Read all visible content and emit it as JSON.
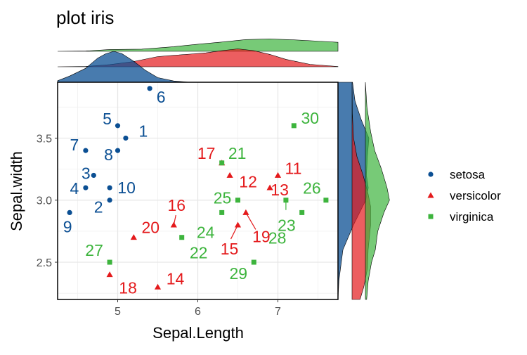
{
  "chart_data": {
    "type": "scatter",
    "title": "plot iris",
    "xlabel": "Sepal.Length",
    "ylabel": "Sepal.width",
    "xlim": [
      4.25,
      7.75
    ],
    "ylim": [
      2.2,
      3.95
    ],
    "x_ticks": [
      "5",
      "6",
      "7"
    ],
    "y_ticks": [
      "2.5",
      "3.0",
      "3.5"
    ],
    "grid": true,
    "legend_position": "right",
    "colors": {
      "setosa": "#0b4f93",
      "versicolor": "#e41a1c",
      "virginica": "#3db43d"
    },
    "series": [
      {
        "name": "setosa",
        "shape": "circle",
        "points": [
          {
            "x": 5.1,
            "y": 3.5,
            "label": "1"
          },
          {
            "x": 4.9,
            "y": 3.0,
            "label": "2"
          },
          {
            "x": 4.7,
            "y": 3.2,
            "label": "3"
          },
          {
            "x": 4.6,
            "y": 3.1,
            "label": "4"
          },
          {
            "x": 5.0,
            "y": 3.6,
            "label": "5"
          },
          {
            "x": 5.4,
            "y": 3.9,
            "label": "6"
          },
          {
            "x": 4.6,
            "y": 3.4,
            "label": "7"
          },
          {
            "x": 5.0,
            "y": 3.4,
            "label": "8"
          },
          {
            "x": 4.4,
            "y": 2.9,
            "label": "9"
          },
          {
            "x": 4.9,
            "y": 3.1,
            "label": "10"
          }
        ]
      },
      {
        "name": "versicolor",
        "shape": "triangle",
        "points": [
          {
            "x": 7.0,
            "y": 3.2,
            "label": "11"
          },
          {
            "x": 6.4,
            "y": 3.2,
            "label": "12"
          },
          {
            "x": 6.9,
            "y": 3.1,
            "label": "13"
          },
          {
            "x": 5.5,
            "y": 2.3,
            "label": "14"
          },
          {
            "x": 6.5,
            "y": 2.8,
            "label": "15"
          },
          {
            "x": 5.7,
            "y": 2.8,
            "label": "16"
          },
          {
            "x": 6.3,
            "y": 3.3,
            "label": "17"
          },
          {
            "x": 4.9,
            "y": 2.4,
            "label": "18"
          },
          {
            "x": 6.6,
            "y": 2.9,
            "label": "19"
          },
          {
            "x": 5.2,
            "y": 2.7,
            "label": "20"
          }
        ]
      },
      {
        "name": "virginica",
        "shape": "square",
        "points": [
          {
            "x": 6.3,
            "y": 3.3,
            "label": "21"
          },
          {
            "x": 5.8,
            "y": 2.7,
            "label": "22"
          },
          {
            "x": 7.1,
            "y": 3.0,
            "label": "23"
          },
          {
            "x": 6.3,
            "y": 2.9,
            "label": "24"
          },
          {
            "x": 6.5,
            "y": 3.0,
            "label": "25"
          },
          {
            "x": 7.6,
            "y": 3.0,
            "label": "26"
          },
          {
            "x": 4.9,
            "y": 2.5,
            "label": "27"
          },
          {
            "x": 7.3,
            "y": 2.9,
            "label": "28"
          },
          {
            "x": 6.7,
            "y": 2.5,
            "label": "29"
          },
          {
            "x": 7.2,
            "y": 3.6,
            "label": "30"
          }
        ]
      }
    ],
    "marginal_densities": {
      "x": {
        "setosa": [
          [
            4.25,
            0.05
          ],
          [
            4.4,
            0.2
          ],
          [
            4.6,
            0.45
          ],
          [
            4.75,
            0.78
          ],
          [
            4.85,
            0.92
          ],
          [
            4.95,
            1.0
          ],
          [
            5.05,
            0.93
          ],
          [
            5.2,
            0.68
          ],
          [
            5.35,
            0.38
          ],
          [
            5.5,
            0.15
          ],
          [
            5.7,
            0.04
          ],
          [
            5.9,
            0.0
          ]
        ],
        "versicolor": [
          [
            4.25,
            0.0
          ],
          [
            4.6,
            0.01
          ],
          [
            4.9,
            0.07
          ],
          [
            5.2,
            0.17
          ],
          [
            5.5,
            0.33
          ],
          [
            5.7,
            0.37
          ],
          [
            5.9,
            0.41
          ],
          [
            6.1,
            0.45
          ],
          [
            6.3,
            0.52
          ],
          [
            6.5,
            0.58
          ],
          [
            6.7,
            0.52
          ],
          [
            6.9,
            0.4
          ],
          [
            7.1,
            0.24
          ],
          [
            7.4,
            0.08
          ],
          [
            7.75,
            0.01
          ]
        ],
        "virginica": [
          [
            4.25,
            0.0
          ],
          [
            4.6,
            0.01
          ],
          [
            4.9,
            0.06
          ],
          [
            5.3,
            0.07
          ],
          [
            5.7,
            0.15
          ],
          [
            6.0,
            0.23
          ],
          [
            6.3,
            0.3
          ],
          [
            6.6,
            0.38
          ],
          [
            6.9,
            0.4
          ],
          [
            7.2,
            0.37
          ],
          [
            7.5,
            0.33
          ],
          [
            7.75,
            0.29
          ]
        ]
      },
      "y": {
        "setosa": [
          [
            2.2,
            0.0
          ],
          [
            2.35,
            0.03
          ],
          [
            2.6,
            0.16
          ],
          [
            2.8,
            0.5
          ],
          [
            3.0,
            0.9
          ],
          [
            3.1,
            0.98
          ],
          [
            3.2,
            0.92
          ],
          [
            3.35,
            0.95
          ],
          [
            3.5,
            1.0
          ],
          [
            3.65,
            0.75
          ],
          [
            3.8,
            0.55
          ],
          [
            3.95,
            0.47
          ]
        ],
        "versicolor": [
          [
            2.2,
            0.26
          ],
          [
            2.3,
            0.38
          ],
          [
            2.45,
            0.5
          ],
          [
            2.6,
            0.52
          ],
          [
            2.8,
            0.6
          ],
          [
            2.95,
            0.6
          ],
          [
            3.05,
            0.52
          ],
          [
            3.2,
            0.36
          ],
          [
            3.35,
            0.16
          ],
          [
            3.5,
            0.05
          ],
          [
            3.7,
            0.01
          ],
          [
            3.95,
            0.0
          ]
        ],
        "virginica": [
          [
            2.2,
            0.04
          ],
          [
            2.35,
            0.09
          ],
          [
            2.5,
            0.2
          ],
          [
            2.6,
            0.32
          ],
          [
            2.75,
            0.4
          ],
          [
            2.9,
            0.6
          ],
          [
            3.0,
            0.78
          ],
          [
            3.1,
            0.7
          ],
          [
            3.25,
            0.52
          ],
          [
            3.4,
            0.3
          ],
          [
            3.55,
            0.17
          ],
          [
            3.75,
            0.05
          ],
          [
            3.95,
            0.0
          ]
        ]
      }
    }
  }
}
